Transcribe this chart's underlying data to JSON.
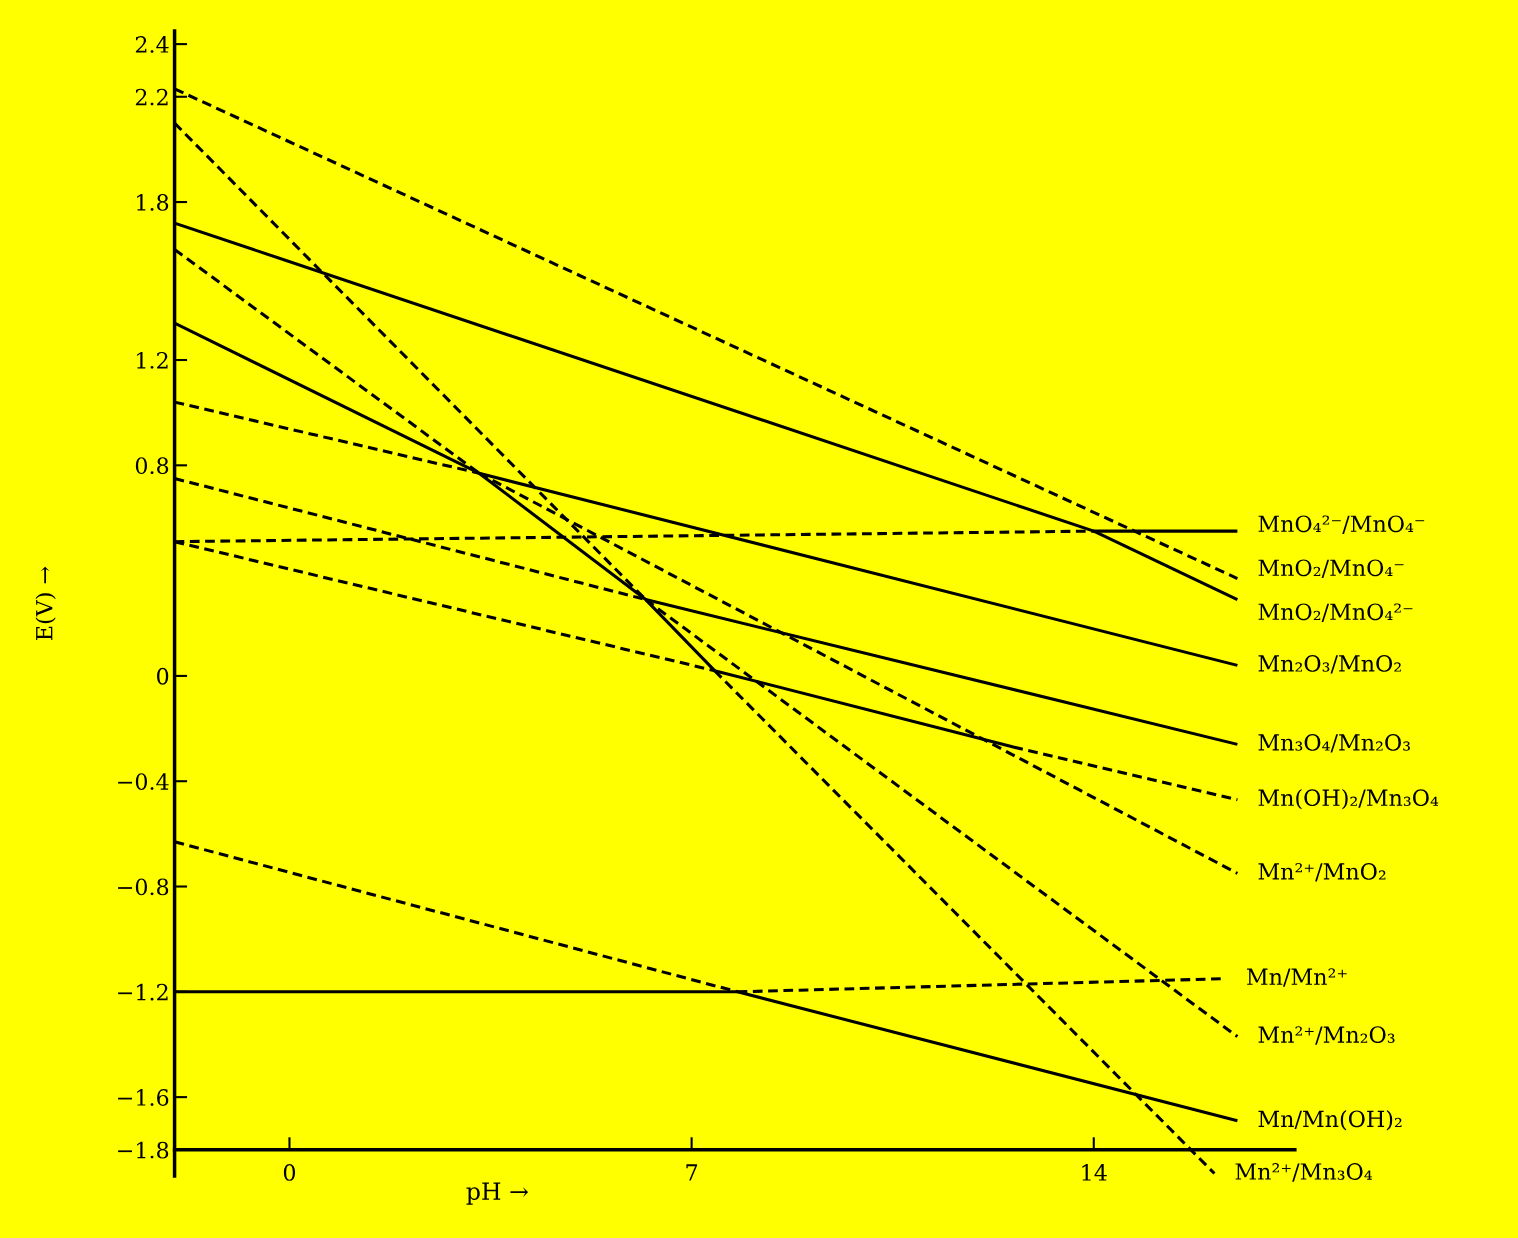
{
  "chart_data": {
    "type": "line",
    "xlabel": "pH →",
    "ylabel": "E(V) →",
    "xlim": [
      -2,
      17.5
    ],
    "ylim": [
      -1.9,
      2.45
    ],
    "xticks": [
      0,
      7,
      14
    ],
    "yticks": [
      {
        "value": -1.8,
        "label": "−1.8"
      },
      {
        "value": -1.6,
        "label": "−1.6"
      },
      {
        "value": -1.2,
        "label": "−1.2"
      },
      {
        "value": -0.8,
        "label": "−0.8"
      },
      {
        "value": -0.4,
        "label": "−0.4"
      },
      0,
      0.8,
      1.2,
      1.8,
      2.2,
      2.4
    ],
    "grid": false,
    "series": [
      {
        "name": "MnO₄²⁻/MnO₄⁻",
        "x": [
          -2,
          14,
          16.5
        ],
        "values": [
          0.51,
          0.55,
          0.55
        ],
        "color": "#000000",
        "line_style": [
          "dashed",
          "solid"
        ]
      },
      {
        "name": "MnO₂/MnO₄⁻",
        "x": [
          -2,
          16.5
        ],
        "values": [
          2.23,
          0.37
        ],
        "color": "#000000",
        "line_style": [
          "dashed"
        ]
      },
      {
        "name": "MnO₂/MnO₄²⁻",
        "x": [
          -2,
          14,
          16.5
        ],
        "values": [
          1.72,
          0.55,
          0.29
        ],
        "color": "#000000",
        "line_style": [
          "solid",
          "solid"
        ]
      },
      {
        "name": "Mn₂O₃/MnO₂",
        "x": [
          -2,
          3.3,
          16.5
        ],
        "values": [
          1.04,
          0.77,
          0.04
        ],
        "color": "#000000",
        "line_style": [
          "dashed",
          "solid"
        ]
      },
      {
        "name": "Mn₃O₄/Mn₂O₃",
        "x": [
          -2,
          6.2,
          16.5
        ],
        "values": [
          0.75,
          0.29,
          -0.26
        ],
        "color": "#000000",
        "line_style": [
          "dashed",
          "solid"
        ]
      },
      {
        "name": "Mn(OH)₂/Mn₃O₄",
        "x": [
          -2,
          7.4,
          12.6,
          16.5
        ],
        "values": [
          0.51,
          0.02,
          -0.27,
          -0.47
        ],
        "color": "#000000",
        "line_style": [
          "dashed",
          "solid",
          "dashed"
        ]
      },
      {
        "name": "Mn²⁺/MnO₂",
        "x": [
          -2,
          3.3,
          16.5
        ],
        "values": [
          1.34,
          0.77,
          -0.75
        ],
        "color": "#000000",
        "line_style": [
          "solid",
          "dashed"
        ]
      },
      {
        "name": "Mn²⁺/Mn₂O₃",
        "x": [
          -2,
          3.3,
          6.2,
          16.5
        ],
        "values": [
          1.62,
          0.77,
          0.29,
          -1.37
        ],
        "color": "#000000",
        "line_style": [
          "dashed",
          "solid",
          "dashed"
        ]
      },
      {
        "name": "Mn²⁺/Mn₃O₄",
        "x": [
          -2,
          6.2,
          7.4,
          16.1
        ],
        "values": [
          2.1,
          0.29,
          0.02,
          -1.89
        ],
        "color": "#000000",
        "line_style": [
          "dashed",
          "solid",
          "dashed"
        ]
      },
      {
        "name": "Mn/Mn²⁺",
        "x": [
          -2,
          7.8,
          16.3
        ],
        "values": [
          -1.2,
          -1.2,
          -1.15
        ],
        "color": "#000000",
        "line_style": [
          "solid",
          "dashed"
        ]
      },
      {
        "name": "Mn/Mn(OH)₂",
        "x": [
          -2,
          7.8,
          16.5
        ],
        "values": [
          -0.63,
          -1.2,
          -1.69
        ],
        "color": "#000000",
        "line_style": [
          "dashed",
          "solid"
        ]
      }
    ]
  }
}
